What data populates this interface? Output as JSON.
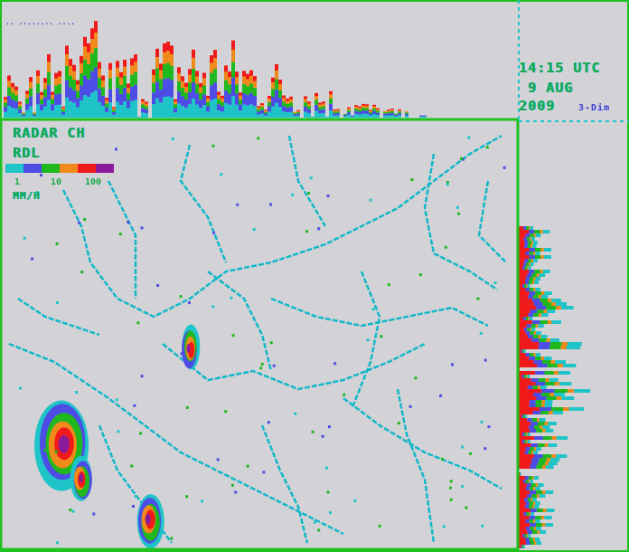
{
  "header_text": "·· ········ ····",
  "map": {
    "title": "RADAR CH",
    "product": "RDL",
    "units": "MM/H",
    "legend_ticks": [
      "1",
      "10",
      "100"
    ],
    "legend_colors": [
      "#1fc4c8",
      "#4d4de6",
      "#1fb81f",
      "#f08a1a",
      "#f01a1a",
      "#8a1a9a"
    ]
  },
  "timestamp": {
    "time": "14:15 UTC",
    "date": "9 AUG",
    "year": "2009",
    "view": "3-Dim"
  },
  "colors": {
    "frame": "#1fc11f",
    "background": "#d3d3d7",
    "rivers": "#12b7c8"
  }
}
